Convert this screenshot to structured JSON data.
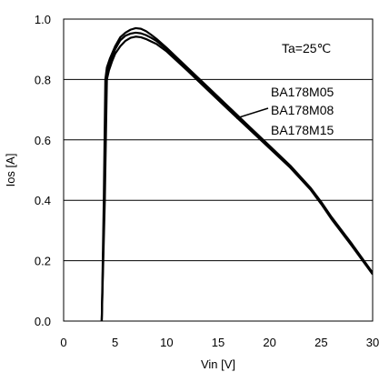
{
  "chart_data": {
    "type": "line",
    "title": "",
    "xlabel": "Vin [V]",
    "ylabel": "Ios [A]",
    "xlim": [
      0,
      30
    ],
    "ylim": [
      0,
      1.0
    ],
    "xticks": [
      "0",
      "5",
      "10",
      "15",
      "20",
      "25",
      "30"
    ],
    "yticks": [
      "0.0",
      "0.2",
      "0.4",
      "0.6",
      "0.8",
      "1.0"
    ],
    "grid": "horizontal",
    "annotation": "Ta=25℃",
    "legend_position": "center-right",
    "series": [
      {
        "name": "BA178M05",
        "x": [
          3.7,
          3.9,
          4.05,
          4.2,
          4.5,
          5.0,
          5.5,
          6.0,
          6.5,
          7.0,
          7.5,
          8.0,
          8.5,
          9.0,
          10,
          12,
          14,
          16,
          18,
          20,
          22,
          24,
          25,
          26,
          28,
          30
        ],
        "y": [
          0.0,
          0.4,
          0.8,
          0.84,
          0.87,
          0.91,
          0.94,
          0.955,
          0.965,
          0.97,
          0.968,
          0.96,
          0.948,
          0.935,
          0.905,
          0.84,
          0.775,
          0.71,
          0.645,
          0.58,
          0.515,
          0.44,
          0.395,
          0.345,
          0.255,
          0.16
        ]
      },
      {
        "name": "BA178M08",
        "x": [
          3.7,
          3.95,
          4.1,
          4.3,
          4.6,
          5.0,
          5.5,
          6.0,
          6.5,
          7.0,
          7.5,
          8.0,
          8.5,
          9.0,
          10,
          12,
          14,
          16,
          18,
          20,
          22,
          24,
          25,
          26,
          28,
          30
        ],
        "y": [
          0.0,
          0.4,
          0.8,
          0.835,
          0.865,
          0.9,
          0.93,
          0.945,
          0.952,
          0.955,
          0.953,
          0.947,
          0.938,
          0.928,
          0.9,
          0.836,
          0.77,
          0.706,
          0.641,
          0.577,
          0.512,
          0.438,
          0.392,
          0.342,
          0.252,
          0.158
        ]
      },
      {
        "name": "BA178M15",
        "x": [
          3.7,
          4.0,
          4.2,
          4.4,
          4.7,
          5.0,
          5.5,
          6.0,
          6.5,
          7.0,
          7.5,
          8.0,
          8.5,
          9.0,
          10,
          12,
          14,
          16,
          18,
          20,
          22,
          24,
          25,
          26,
          28,
          30
        ],
        "y": [
          0.0,
          0.4,
          0.8,
          0.83,
          0.86,
          0.885,
          0.91,
          0.928,
          0.938,
          0.942,
          0.94,
          0.934,
          0.926,
          0.918,
          0.893,
          0.83,
          0.765,
          0.7,
          0.636,
          0.572,
          0.508,
          0.434,
          0.388,
          0.338,
          0.248,
          0.155
        ]
      }
    ]
  }
}
